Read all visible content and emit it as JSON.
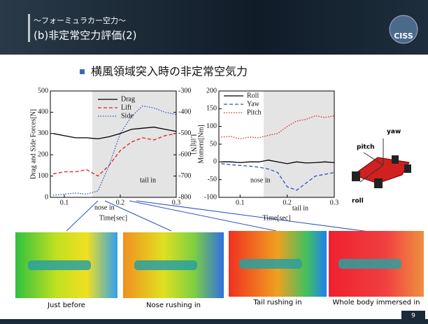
{
  "header": {
    "subtitle": "～フォーミュラカー空力～",
    "title": "(b)非定常空力評価(2)",
    "logo": "CISS"
  },
  "bullet": "横風領域突入時の非定常空気力",
  "chart_data": [
    {
      "type": "line",
      "xlabel": "Time[sec]",
      "ylabel": "Drag and Side Forces[N]",
      "y2label": "Lift[N]",
      "xlim": [
        0.075,
        0.3
      ],
      "xticks": [
        0.1,
        0.2,
        0.3
      ],
      "ylim": [
        0,
        500
      ],
      "yticks": [
        0,
        100,
        200,
        300,
        400,
        500
      ],
      "y2lim": [
        -800,
        -300
      ],
      "y2ticks": [
        -800,
        -700,
        -600,
        -500,
        -400,
        -300
      ],
      "shaded_xrange": [
        0.15,
        0.3
      ],
      "annotations": [
        "nose in",
        "tail in"
      ],
      "x": [
        0.08,
        0.1,
        0.12,
        0.14,
        0.16,
        0.18,
        0.2,
        0.22,
        0.24,
        0.26,
        0.28,
        0.3
      ],
      "series": [
        {
          "name": "Drag",
          "color": "#000000",
          "dash": "solid",
          "values": [
            300,
            290,
            280,
            280,
            275,
            285,
            300,
            320,
            325,
            330,
            320,
            310
          ]
        },
        {
          "name": "Lift",
          "color": "#e02020",
          "dash": "dashed",
          "axis": "y2",
          "values": [
            -690,
            -680,
            -680,
            -670,
            -700,
            -650,
            -580,
            -540,
            -520,
            -530,
            -510,
            -500
          ]
        },
        {
          "name": "Side",
          "color": "#3050c0",
          "dash": "dotted",
          "values": [
            10,
            15,
            20,
            15,
            30,
            150,
            300,
            380,
            430,
            420,
            400,
            390
          ]
        }
      ]
    },
    {
      "type": "line",
      "xlabel": "Time[sec]",
      "ylabel": "Moment[Nm]",
      "xlim": [
        0.055,
        0.3
      ],
      "xticks": [
        0.1,
        0.2,
        0.3
      ],
      "ylim": [
        -100,
        200
      ],
      "yticks": [
        -100,
        -50,
        0,
        50,
        100,
        150,
        200
      ],
      "shaded_xrange": [
        0.15,
        0.3
      ],
      "annotations": [
        "nose in",
        "tail in"
      ],
      "x": [
        0.06,
        0.08,
        0.1,
        0.12,
        0.14,
        0.16,
        0.18,
        0.2,
        0.22,
        0.24,
        0.26,
        0.28,
        0.3
      ],
      "series": [
        {
          "name": "Roll",
          "color": "#000000",
          "dash": "solid",
          "values": [
            0,
            0,
            -2,
            0,
            0,
            5,
            0,
            -5,
            0,
            -3,
            -2,
            0,
            -2
          ]
        },
        {
          "name": "Yaw",
          "color": "#3050c0",
          "dash": "dashed",
          "values": [
            -5,
            -8,
            -10,
            -12,
            -15,
            -20,
            -30,
            -70,
            -80,
            -60,
            -40,
            -35,
            -30
          ]
        },
        {
          "name": "Pitch",
          "color": "#e02020",
          "dash": "dotted",
          "values": [
            70,
            72,
            65,
            70,
            68,
            75,
            80,
            100,
            115,
            120,
            130,
            125,
            130
          ]
        }
      ]
    }
  ],
  "diagram": {
    "labels": [
      "yaw",
      "pitch",
      "roll"
    ]
  },
  "images": [
    {
      "caption": "Just before"
    },
    {
      "caption": "Nose rushing in"
    },
    {
      "caption": "Tail rushing in"
    },
    {
      "caption": "Whole body immersed in"
    }
  ],
  "page_number": "9"
}
